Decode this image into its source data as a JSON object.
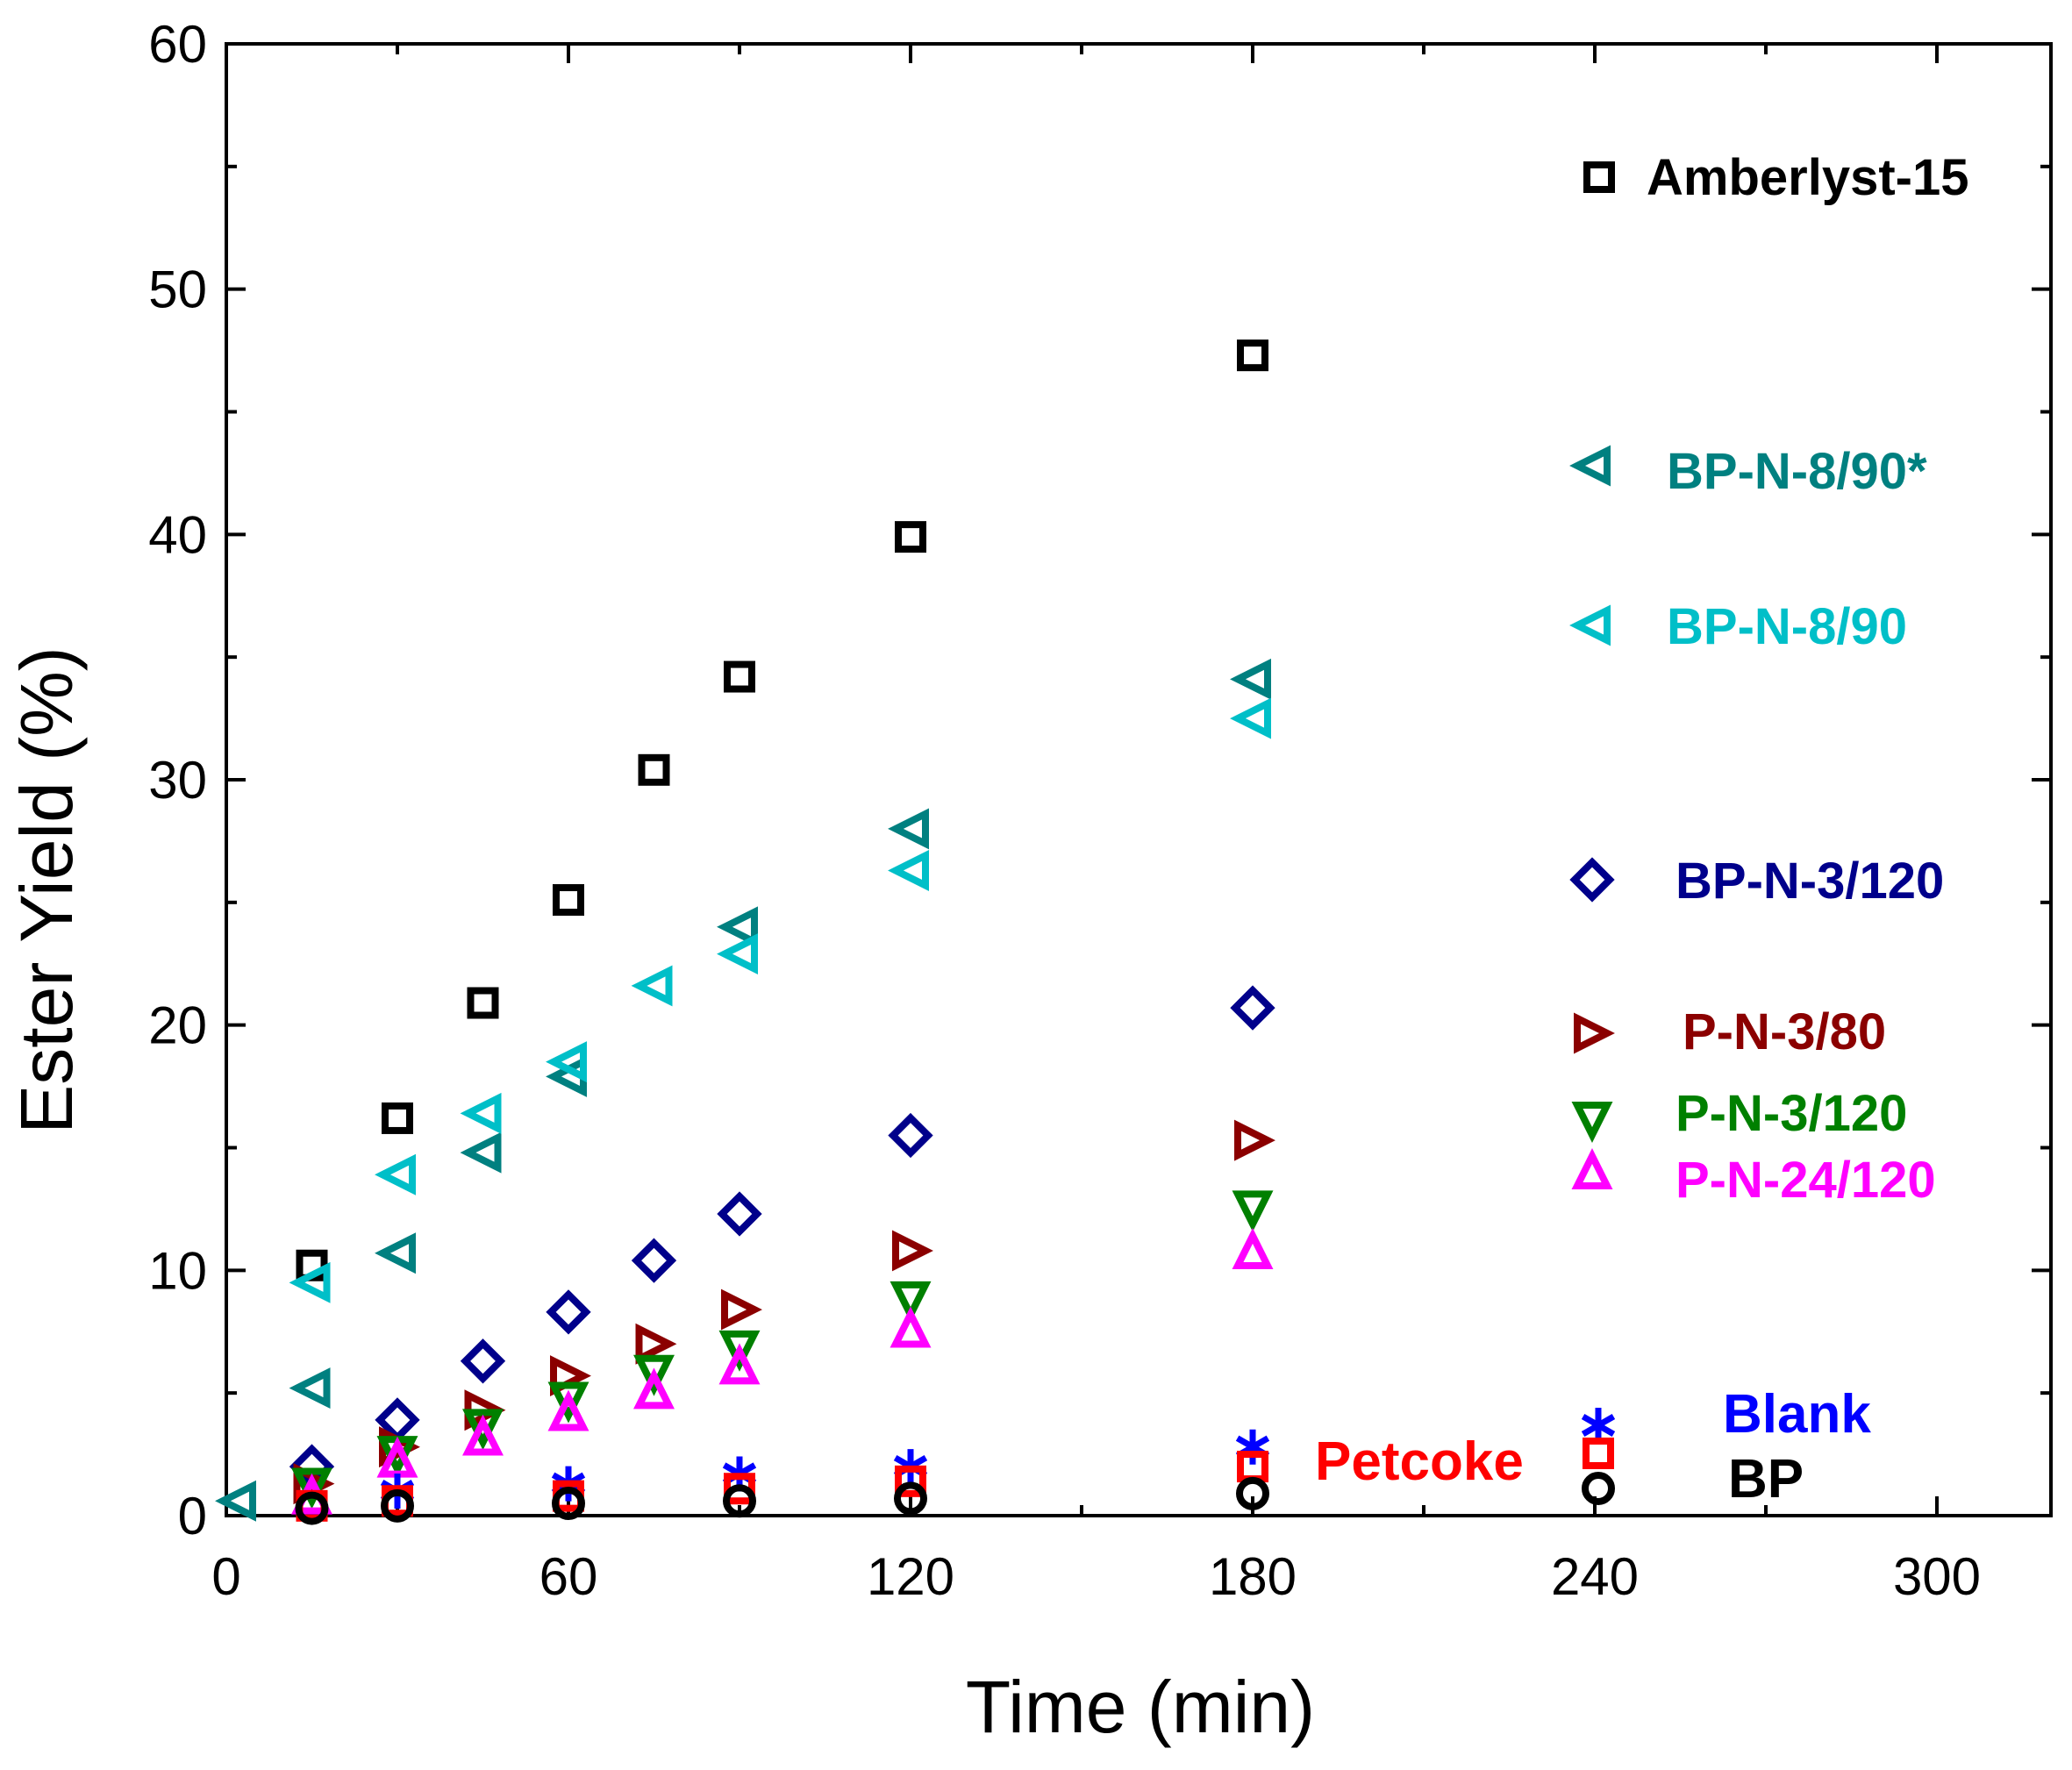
{
  "chart_data": {
    "type": "scatter",
    "title": "",
    "xlabel": "Time (min)",
    "ylabel": "Ester Yield (%)",
    "xlim": [
      0,
      320
    ],
    "ylim": [
      0,
      60
    ],
    "xticks": [
      0,
      60,
      120,
      180,
      240,
      300
    ],
    "xtick_labels": [
      "0",
      "60",
      "120",
      "180",
      "240",
      "300"
    ],
    "yticks": [
      0,
      10,
      20,
      30,
      40,
      50,
      60
    ],
    "ytick_labels": [
      "0",
      "10",
      "20",
      "30",
      "40",
      "50",
      "60"
    ],
    "grid": false,
    "legend": "right",
    "series": [
      {
        "name": "Amberlyst-15",
        "marker": "square",
        "color": "#000000",
        "points": [
          [
            15,
            10.2
          ],
          [
            30,
            16.2
          ],
          [
            45,
            20.9
          ],
          [
            60,
            25.1
          ],
          [
            75,
            30.4
          ],
          [
            90,
            34.2
          ],
          [
            120,
            39.9
          ],
          [
            180,
            47.3
          ]
        ]
      },
      {
        "name": "BP-N-8/90*",
        "marker": "triangle-left",
        "color": "#008080",
        "points": [
          [
            2,
            0.6
          ],
          [
            15,
            5.2
          ],
          [
            30,
            10.7
          ],
          [
            45,
            14.8
          ],
          [
            60,
            17.9
          ],
          [
            90,
            24.0
          ],
          [
            120,
            28.0
          ],
          [
            180,
            34.1
          ]
        ]
      },
      {
        "name": "BP-N-8/90",
        "marker": "triangle-left",
        "color": "#00BFC8",
        "points": [
          [
            15,
            9.5
          ],
          [
            30,
            13.9
          ],
          [
            45,
            16.4
          ],
          [
            60,
            18.5
          ],
          [
            75,
            21.6
          ],
          [
            90,
            22.9
          ],
          [
            120,
            26.3
          ],
          [
            180,
            32.5
          ]
        ]
      },
      {
        "name": "BP-N-3/120",
        "marker": "diamond",
        "color": "#00008B",
        "points": [
          [
            15,
            2.0
          ],
          [
            30,
            3.9
          ],
          [
            45,
            6.3
          ],
          [
            60,
            8.3
          ],
          [
            75,
            10.4
          ],
          [
            90,
            12.3
          ],
          [
            120,
            15.5
          ],
          [
            180,
            20.7
          ]
        ]
      },
      {
        "name": "P-N-3/80",
        "marker": "triangle-right",
        "color": "#8B0000",
        "points": [
          [
            15,
            1.3
          ],
          [
            30,
            2.8
          ],
          [
            45,
            4.3
          ],
          [
            60,
            5.7
          ],
          [
            75,
            7.0
          ],
          [
            90,
            8.4
          ],
          [
            120,
            10.8
          ],
          [
            180,
            15.3
          ]
        ]
      },
      {
        "name": "P-N-3/120",
        "marker": "triangle-down",
        "color": "#008000",
        "points": [
          [
            15,
            1.2
          ],
          [
            30,
            2.5
          ],
          [
            45,
            3.6
          ],
          [
            60,
            4.7
          ],
          [
            75,
            5.8
          ],
          [
            90,
            6.8
          ],
          [
            120,
            8.8
          ],
          [
            180,
            12.5
          ]
        ]
      },
      {
        "name": "P-N-24/120",
        "marker": "triangle-up",
        "color": "#FF00FF",
        "points": [
          [
            15,
            0.8
          ],
          [
            30,
            2.3
          ],
          [
            45,
            3.2
          ],
          [
            60,
            4.2
          ],
          [
            75,
            5.1
          ],
          [
            90,
            6.1
          ],
          [
            120,
            7.6
          ],
          [
            180,
            10.8
          ]
        ]
      },
      {
        "name": "Blank",
        "marker": "asterisk",
        "color": "#0000FF",
        "points": [
          [
            30,
            1.0
          ],
          [
            60,
            1.3
          ],
          [
            90,
            1.7
          ],
          [
            120,
            2.0
          ],
          [
            180,
            2.8
          ]
        ]
      },
      {
        "name": "Petcoke",
        "marker": "square",
        "color": "#FF0000",
        "points": [
          [
            15,
            0.4
          ],
          [
            30,
            0.6
          ],
          [
            60,
            0.8
          ],
          [
            90,
            1.1
          ],
          [
            120,
            1.4
          ],
          [
            180,
            2.0
          ]
        ]
      },
      {
        "name": "BP",
        "marker": "circle",
        "color": "#000000",
        "points": [
          [
            15,
            0.3
          ],
          [
            30,
            0.4
          ],
          [
            60,
            0.5
          ],
          [
            90,
            0.6
          ],
          [
            120,
            0.7
          ],
          [
            180,
            0.9
          ]
        ]
      }
    ]
  }
}
